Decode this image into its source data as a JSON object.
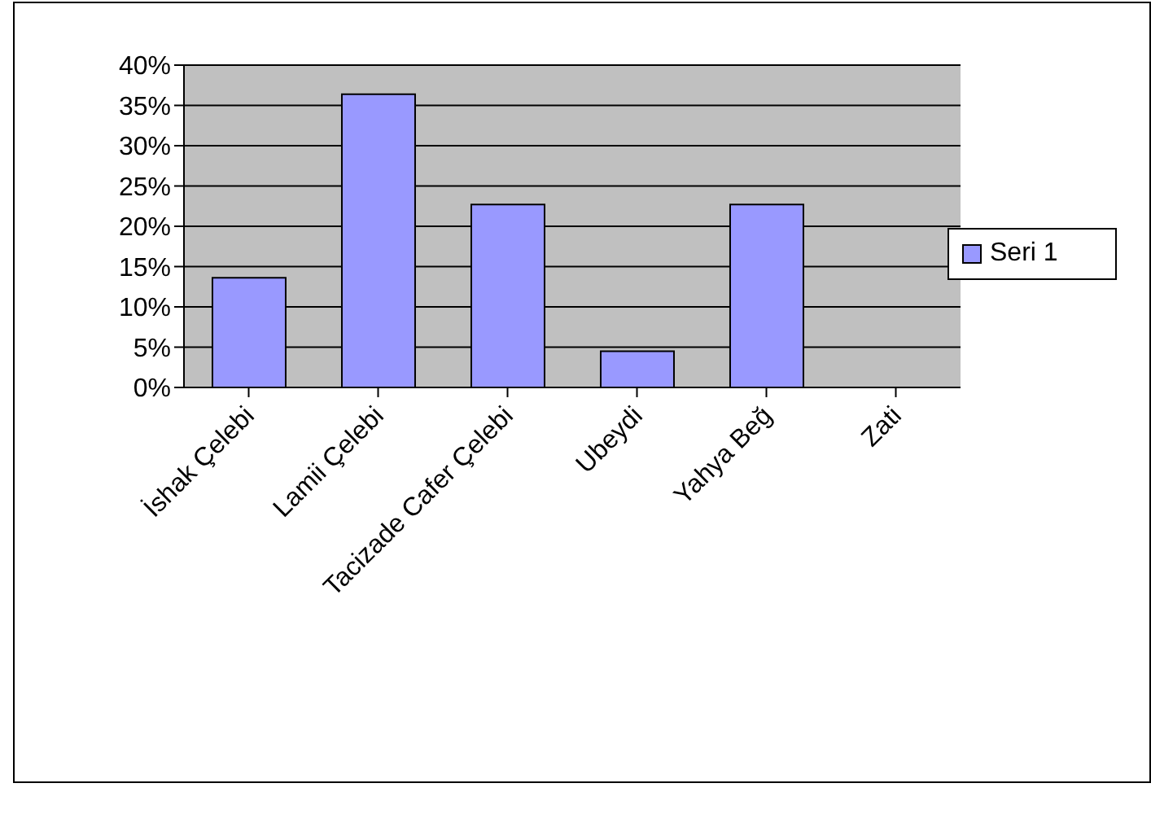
{
  "chart_data": {
    "type": "bar",
    "categories": [
      "İshak Çelebi",
      "Lamii Çelebi",
      "Tacizade Cafer Çelebi",
      "Ubeydi",
      "Yahya Beğ",
      "Zati"
    ],
    "series": [
      {
        "name": "Seri 1",
        "color": "#9999ff",
        "values": [
          13.6,
          36.4,
          22.7,
          4.5,
          22.7,
          0
        ]
      }
    ],
    "ylim": [
      0,
      40
    ],
    "yticks": [
      {
        "value": 0,
        "label": "0%"
      },
      {
        "value": 5,
        "label": "5%"
      },
      {
        "value": 10,
        "label": "10%"
      },
      {
        "value": 15,
        "label": "15%"
      },
      {
        "value": 20,
        "label": "20%"
      },
      {
        "value": 25,
        "label": "25%"
      },
      {
        "value": 30,
        "label": "30%"
      },
      {
        "value": 35,
        "label": "35%"
      },
      {
        "value": 40,
        "label": "40%"
      }
    ],
    "grid": "y",
    "legend": "right"
  }
}
